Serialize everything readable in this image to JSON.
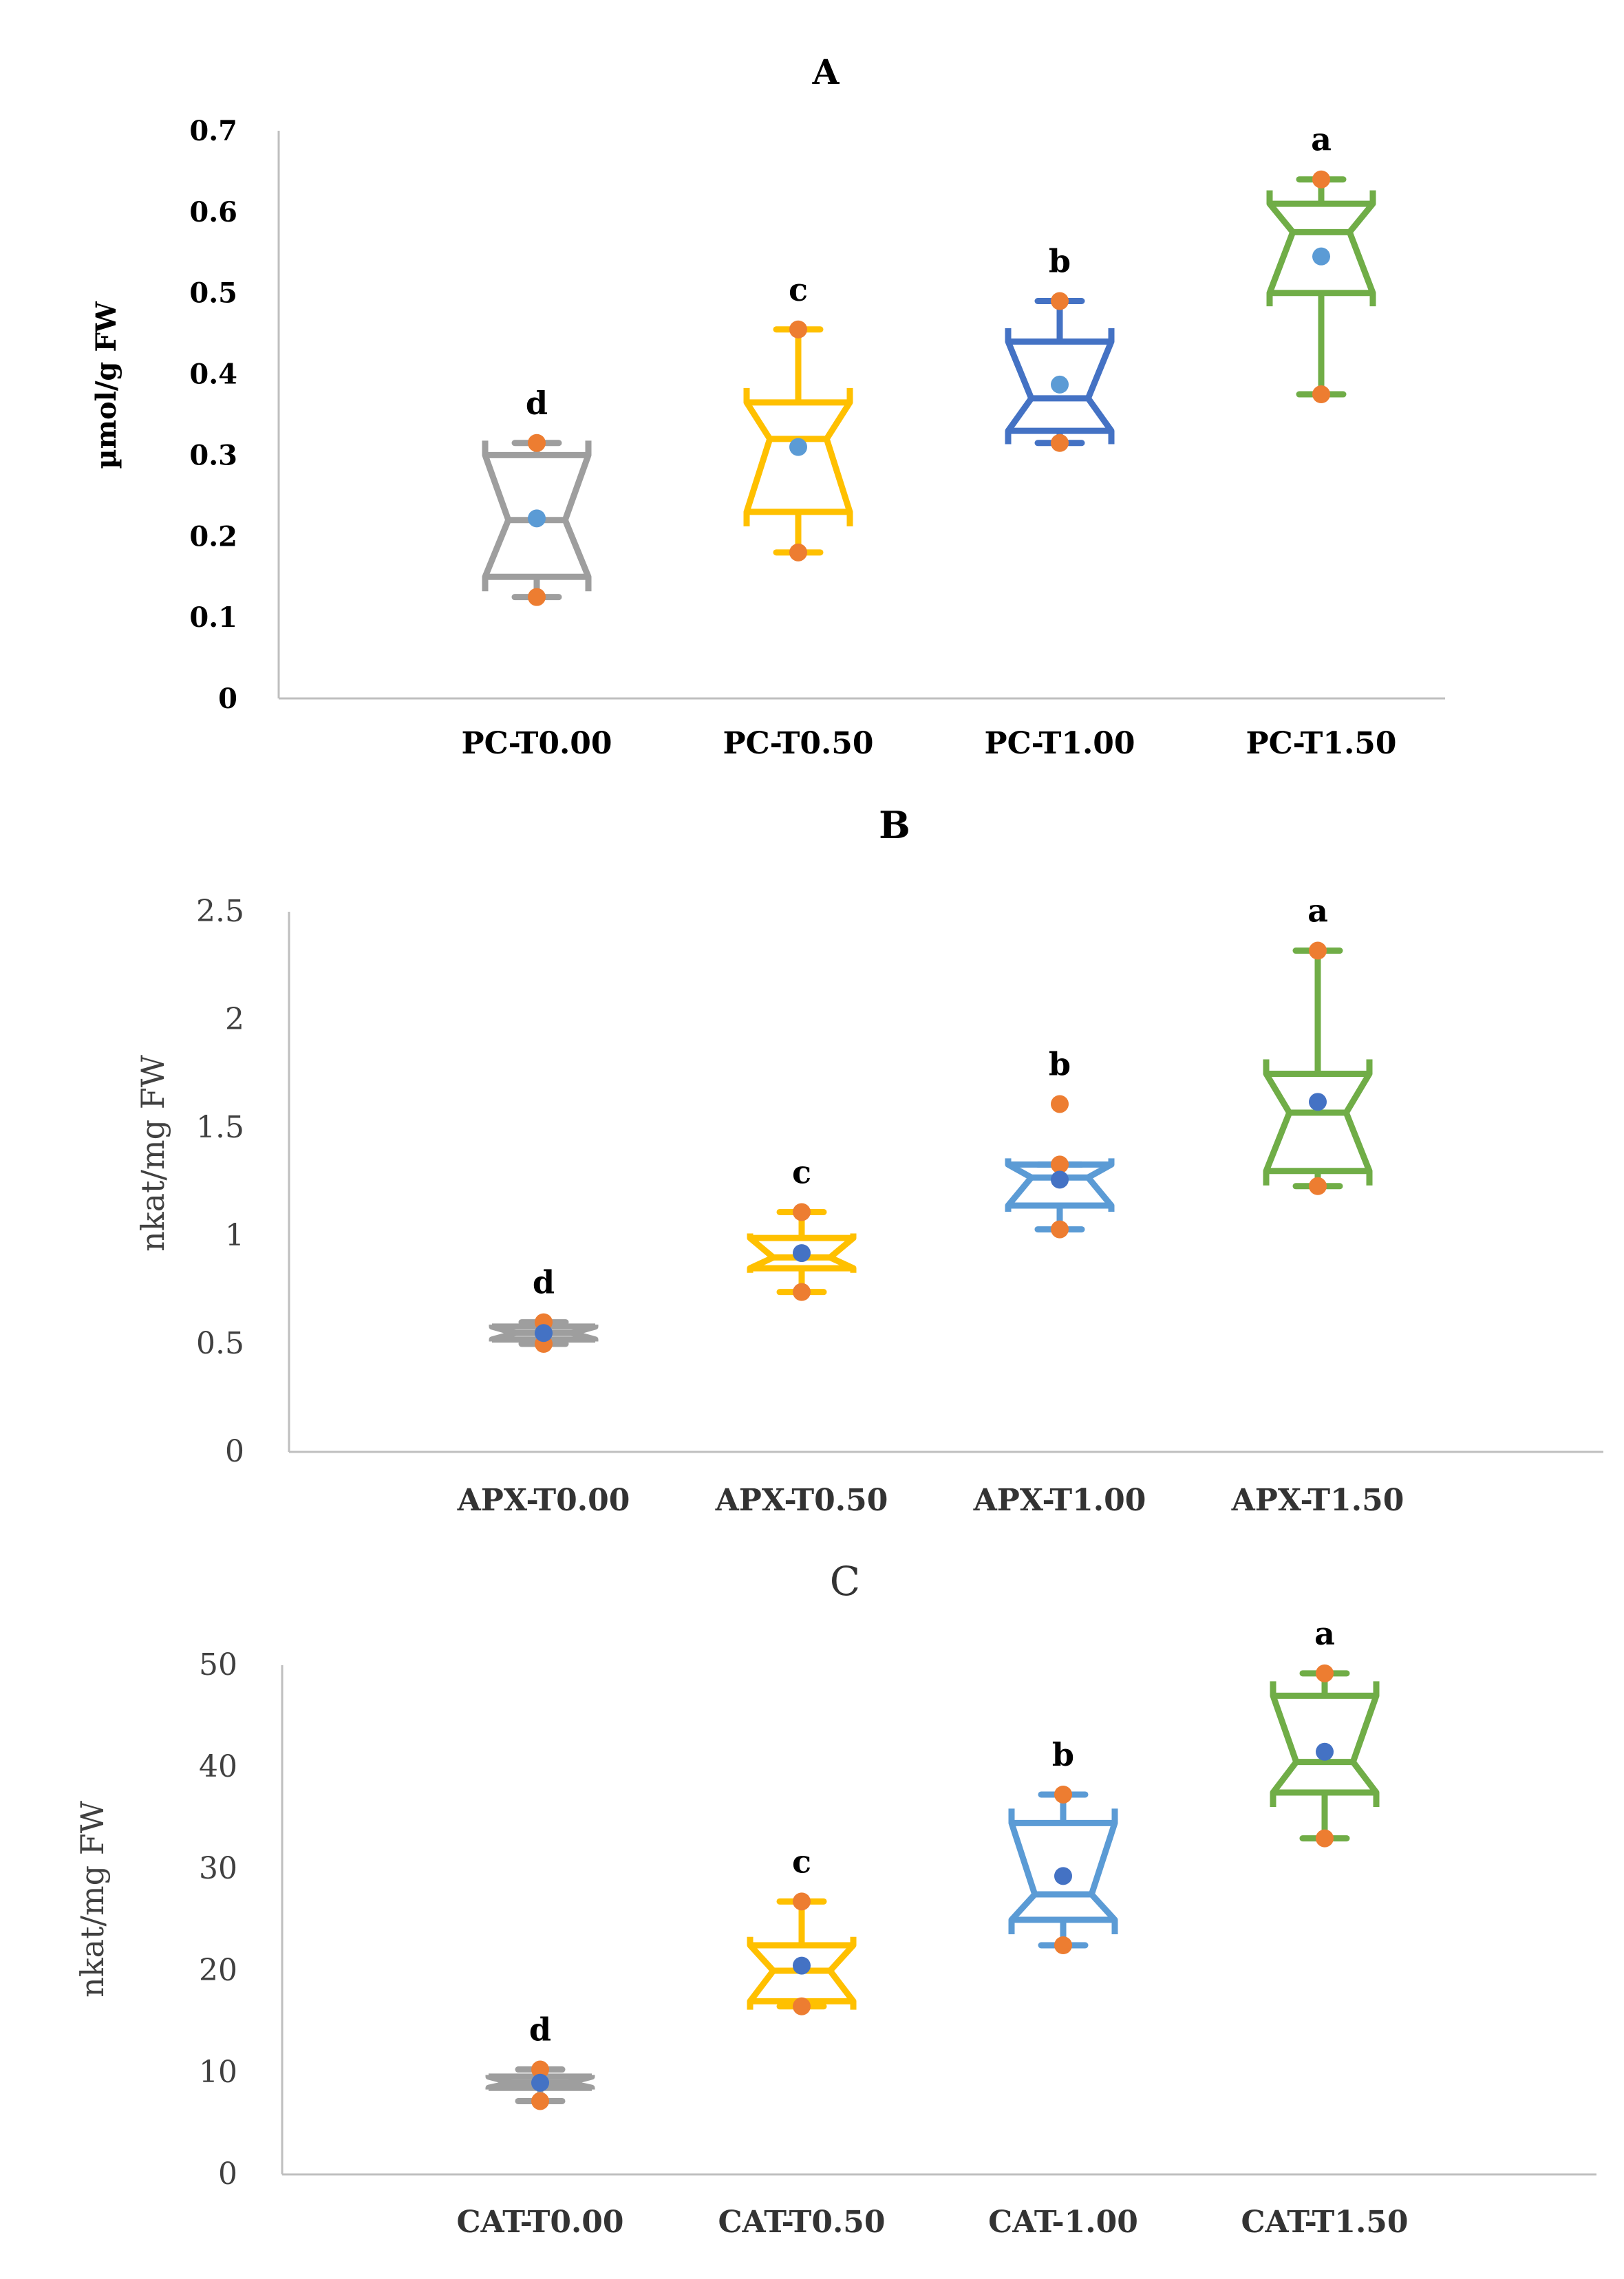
{
  "chart_data": [
    {
      "type": "box",
      "title": "A",
      "ylabel": "µmol/g FW",
      "xlabel": "",
      "ylim": [
        0,
        0.7
      ],
      "yticks": [
        "0",
        "0.1",
        "0.2",
        "0.3",
        "0.4",
        "0.5",
        "0.6",
        "0.7"
      ],
      "ytick_values": [
        0,
        0.1,
        0.2,
        0.3,
        0.4,
        0.5,
        0.6,
        0.7
      ],
      "categories": [
        "PC-T0.00",
        "PC-T0.50",
        "PC-T1.00",
        "PC-T1.50"
      ],
      "colors": [
        "#9e9e9e",
        "#ffc000",
        "#4472c4",
        "#70ad47"
      ],
      "mean_color": "#5b9bd5",
      "boxes": [
        {
          "min": 0.125,
          "q1": 0.15,
          "median": 0.22,
          "q3": 0.3,
          "max": 0.315,
          "mean": 0.222,
          "letter": "d"
        },
        {
          "min": 0.18,
          "q1": 0.23,
          "median": 0.32,
          "q3": 0.365,
          "max": 0.455,
          "mean": 0.31,
          "letter": "c"
        },
        {
          "min": 0.315,
          "q1": 0.33,
          "median": 0.37,
          "q3": 0.44,
          "max": 0.49,
          "mean": 0.387,
          "letter": "b"
        },
        {
          "min": 0.375,
          "q1": 0.5,
          "median": 0.575,
          "q3": 0.61,
          "max": 0.64,
          "mean": 0.545,
          "letter": "a"
        }
      ]
    },
    {
      "type": "box",
      "title": "B",
      "ylabel": "nkat/mg FW",
      "xlabel": "",
      "ylim": [
        0,
        2.5
      ],
      "yticks": [
        "0",
        "0.5",
        "1",
        "1.5",
        "2",
        "2.5"
      ],
      "ytick_values": [
        0,
        0.5,
        1,
        1.5,
        2,
        2.5
      ],
      "categories": [
        "APX-T0.00",
        "APX-T0.50",
        "APX-T1.00",
        "APX-T1.50"
      ],
      "colors": [
        "#9e9e9e",
        "#ffc000",
        "#5b9bd5",
        "#70ad47"
      ],
      "mean_color": "#4472c4",
      "boxes": [
        {
          "min": 0.5,
          "q1": 0.52,
          "median": 0.55,
          "q3": 0.58,
          "max": 0.6,
          "mean": 0.55,
          "letter": "d"
        },
        {
          "min": 0.74,
          "q1": 0.85,
          "median": 0.9,
          "q3": 0.99,
          "max": 1.11,
          "mean": 0.92,
          "letter": "c"
        },
        {
          "min": 1.03,
          "q1": 1.14,
          "median": 1.27,
          "q3": 1.33,
          "max": 1.33,
          "mean": 1.26,
          "outlier": 1.61,
          "letter": "b"
        },
        {
          "min": 1.23,
          "q1": 1.3,
          "median": 1.57,
          "q3": 1.75,
          "max": 2.32,
          "mean": 1.62,
          "letter": "a"
        }
      ]
    },
    {
      "type": "box",
      "title": "C",
      "ylabel": "nkat/mg FW",
      "xlabel": "",
      "ylim": [
        0,
        50
      ],
      "yticks": [
        "0",
        "10",
        "20",
        "30",
        "40",
        "50"
      ],
      "ytick_values": [
        0,
        10,
        20,
        30,
        40,
        50
      ],
      "categories": [
        "CAT-T0.00",
        "CAT-T0.50",
        "CAT-1.00",
        "CAT-T1.50"
      ],
      "colors": [
        "#9e9e9e",
        "#ffc000",
        "#5b9bd5",
        "#70ad47"
      ],
      "mean_color": "#4472c4",
      "boxes": [
        {
          "min": 7.2,
          "q1": 8.5,
          "median": 9.0,
          "q3": 9.6,
          "max": 10.3,
          "mean": 9.0,
          "letter": "d"
        },
        {
          "min": 16.5,
          "q1": 17.0,
          "median": 20.0,
          "q3": 22.5,
          "max": 26.8,
          "mean": 20.5,
          "letter": "c"
        },
        {
          "min": 22.5,
          "q1": 25.0,
          "median": 27.5,
          "q3": 34.5,
          "max": 37.3,
          "mean": 29.3,
          "letter": "b"
        },
        {
          "min": 33.0,
          "q1": 37.5,
          "median": 40.5,
          "q3": 47.0,
          "max": 49.2,
          "mean": 41.5,
          "letter": "a"
        }
      ]
    }
  ],
  "whisker_point_color": "#ed7d31"
}
